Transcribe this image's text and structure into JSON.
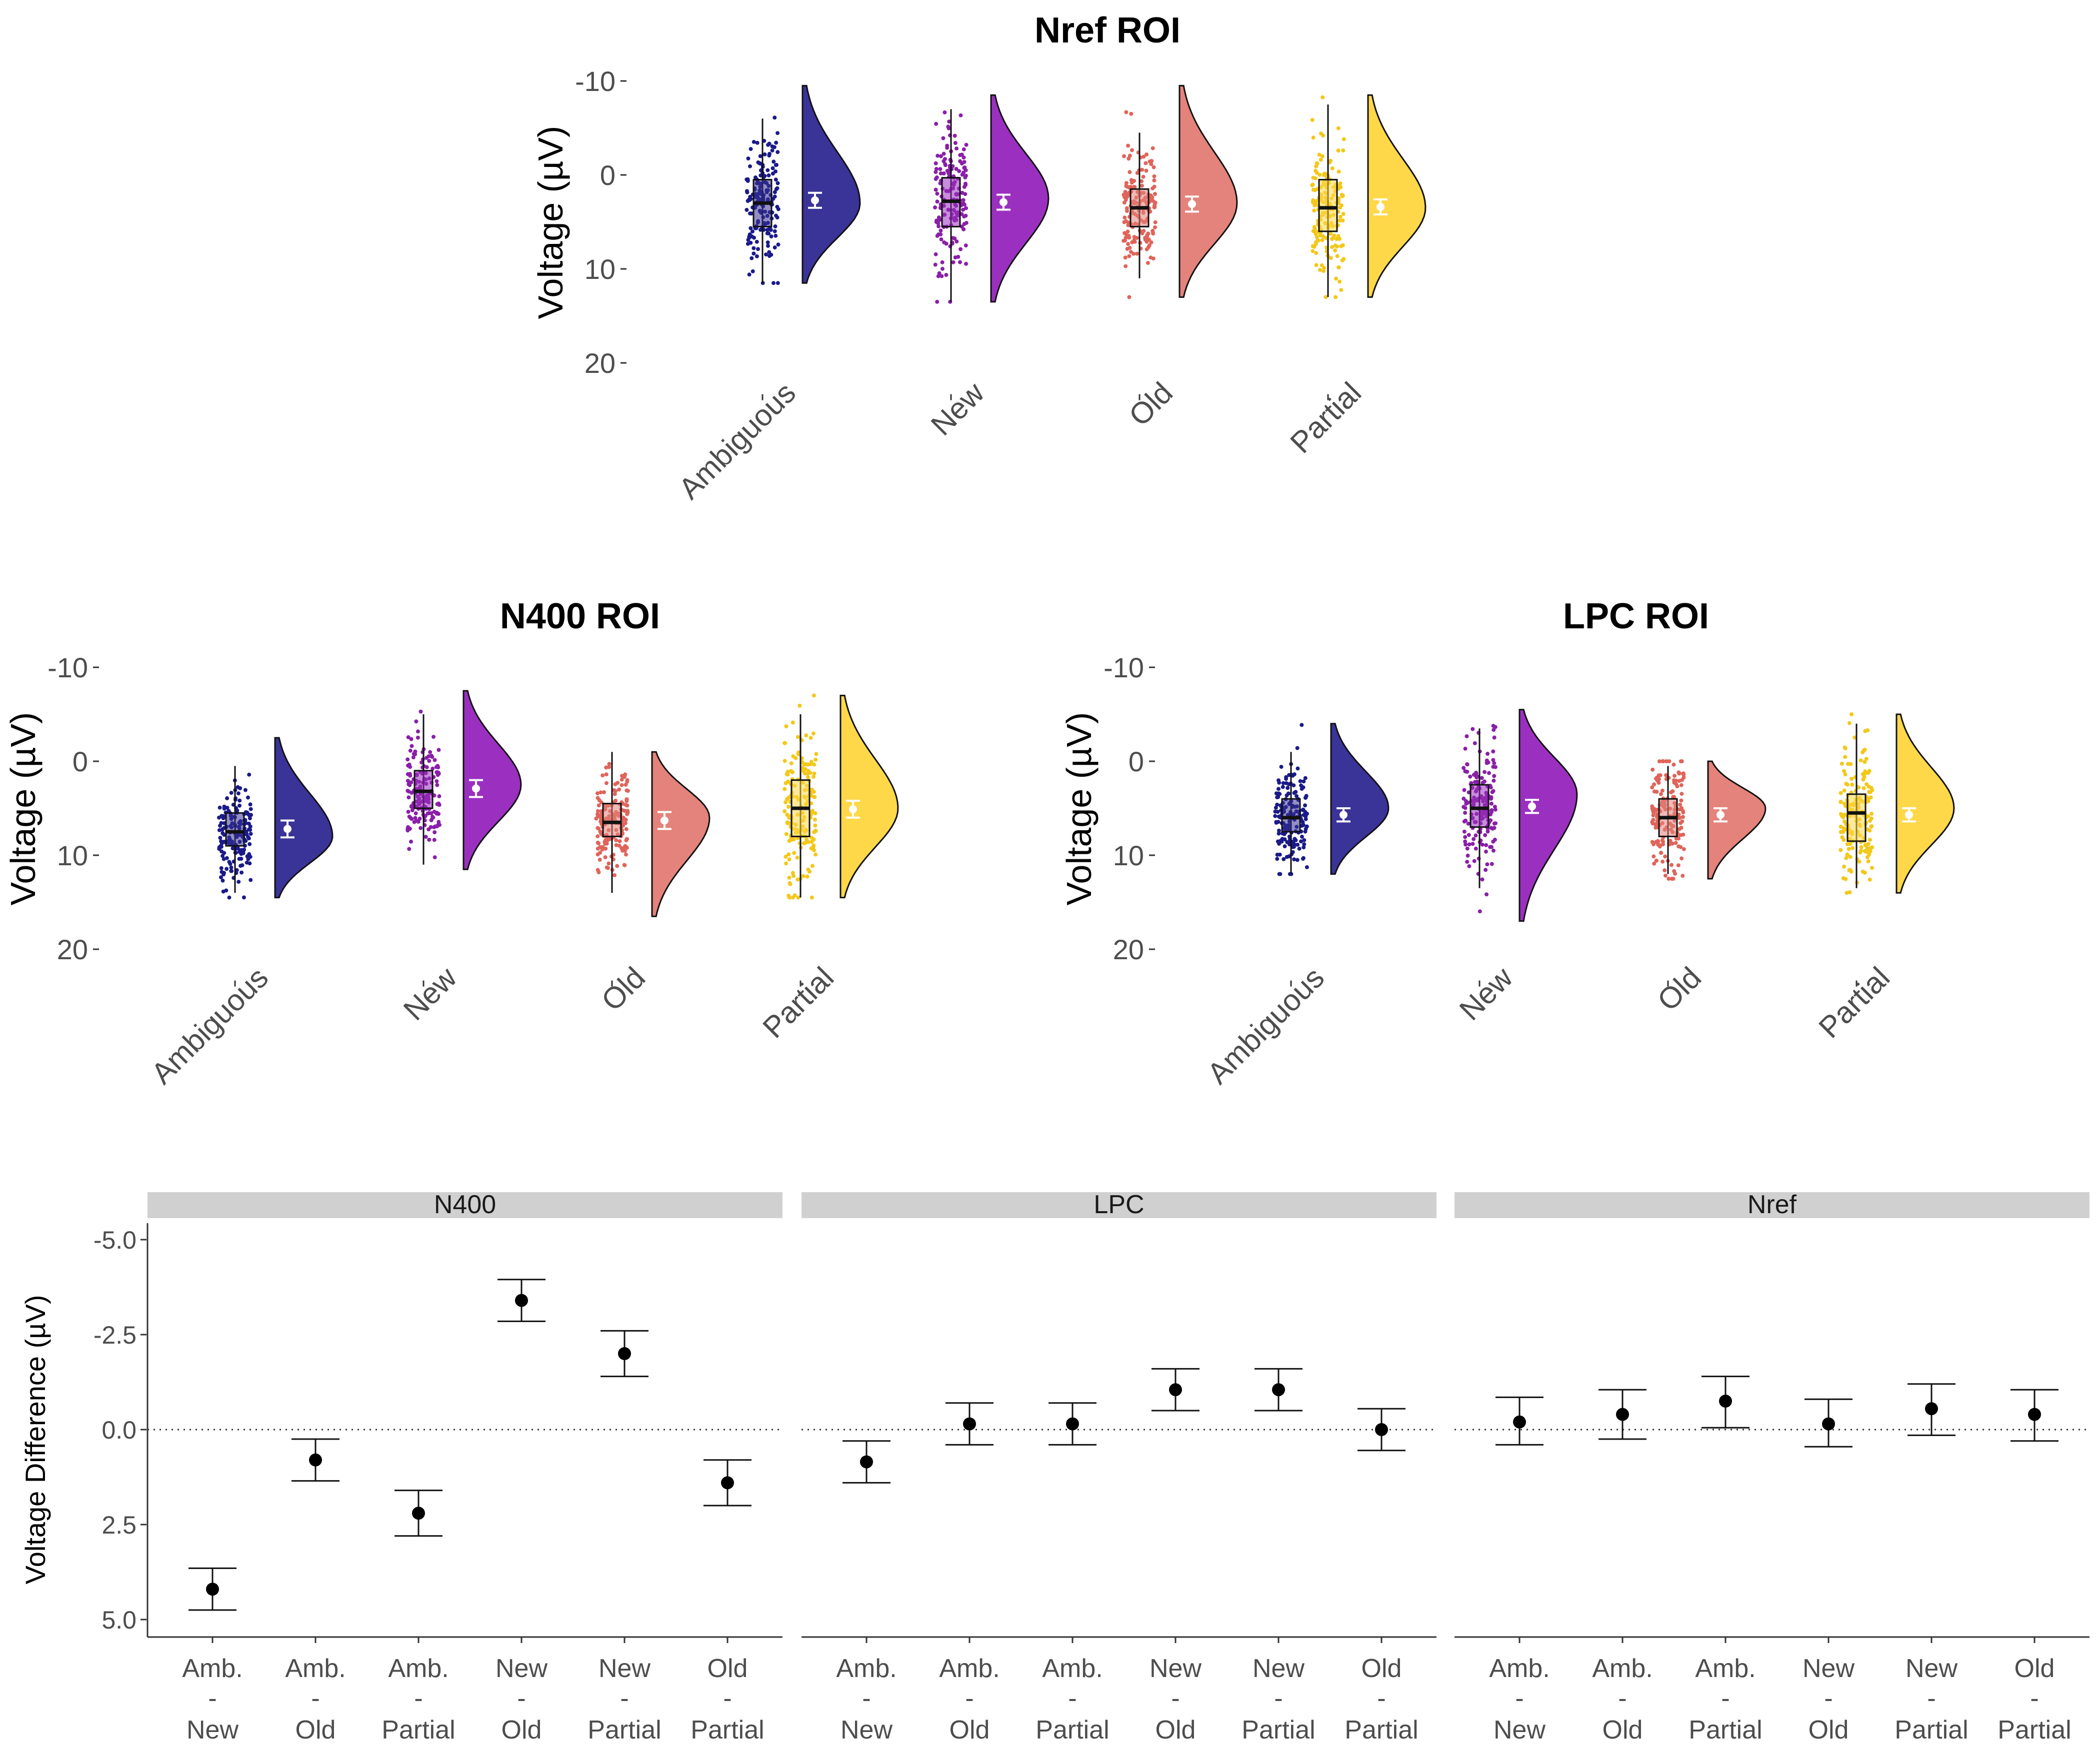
{
  "colors": {
    "Ambiguous": "#3a3398",
    "New": "#9b30c0",
    "Old": "#e4837b",
    "Partial": "#ffd84a",
    "Ambiguous_pt": "#1a1a8a",
    "New_pt": "#8a1fa8",
    "Old_pt": "#e0645a",
    "Partial_pt": "#f2c81a"
  },
  "chart_data": [
    {
      "type": "raincloud",
      "title": "Nref ROI",
      "ylabel": "Voltage (µV)",
      "ylim": [
        -11,
        22
      ],
      "y_reversed": true,
      "yticks": [
        -10,
        0,
        10,
        20
      ],
      "ytick_labels": [
        "-10",
        "0",
        "10",
        "20"
      ],
      "categories": [
        "Ambiguous",
        "New",
        "Old",
        "Partial"
      ],
      "box": [
        {
          "q1": 0.5,
          "median": 3.0,
          "q3": 5.5,
          "lo": -6.0,
          "hi": 11.5,
          "mean": 2.7,
          "ci": [
            1.9,
            3.5
          ],
          "density_min": -9.5,
          "density_max": 11.5,
          "density_mode": 3.0
        },
        {
          "q1": 0.3,
          "median": 2.8,
          "q3": 5.5,
          "lo": -7.0,
          "hi": 13.5,
          "mean": 2.9,
          "ci": [
            2.1,
            3.7
          ],
          "density_min": -8.5,
          "density_max": 13.5,
          "density_mode": 2.5
        },
        {
          "q1": 1.5,
          "median": 3.5,
          "q3": 5.5,
          "lo": -4.5,
          "hi": 11.0,
          "mean": 3.1,
          "ci": [
            2.3,
            3.9
          ],
          "density_min": -9.5,
          "density_max": 13.0,
          "density_mode": 3.0
        },
        {
          "q1": 0.5,
          "median": 3.5,
          "q3": 6.0,
          "lo": -7.5,
          "hi": 13.0,
          "mean": 3.4,
          "ci": [
            2.6,
            4.2
          ],
          "density_min": -8.5,
          "density_max": 13.0,
          "density_mode": 3.5
        }
      ]
    },
    {
      "type": "raincloud",
      "title": "N400 ROI",
      "ylabel": "Voltage (µV)",
      "ylim": [
        -11,
        22
      ],
      "y_reversed": true,
      "yticks": [
        -10,
        0,
        10,
        20
      ],
      "ytick_labels": [
        "-10",
        "0",
        "10",
        "20"
      ],
      "categories": [
        "Ambiguous",
        "New",
        "Old",
        "Partial"
      ],
      "box": [
        {
          "q1": 5.5,
          "median": 7.5,
          "q3": 9.0,
          "lo": 0.5,
          "hi": 14.0,
          "mean": 7.2,
          "ci": [
            6.3,
            8.1
          ],
          "density_min": -2.5,
          "density_max": 14.5,
          "density_mode": 8.0
        },
        {
          "q1": 1.0,
          "median": 3.2,
          "q3": 5.0,
          "lo": -5.0,
          "hi": 11.0,
          "mean": 2.9,
          "ci": [
            2.0,
            3.8
          ],
          "density_min": -7.5,
          "density_max": 11.5,
          "density_mode": 2.5
        },
        {
          "q1": 4.5,
          "median": 6.5,
          "q3": 8.0,
          "lo": -1.0,
          "hi": 14.0,
          "mean": 6.3,
          "ci": [
            5.4,
            7.2
          ],
          "density_min": -1.0,
          "density_max": 16.5,
          "density_mode": 6.0
        },
        {
          "q1": 2.0,
          "median": 5.0,
          "q3": 8.0,
          "lo": -5.0,
          "hi": 14.5,
          "mean": 5.1,
          "ci": [
            4.2,
            6.0
          ],
          "density_min": -7.0,
          "density_max": 14.5,
          "density_mode": 5.0
        }
      ]
    },
    {
      "type": "raincloud",
      "title": "LPC ROI",
      "ylabel": "Voltage (µV)",
      "ylim": [
        -11,
        22
      ],
      "y_reversed": true,
      "yticks": [
        -10,
        0,
        10,
        20
      ],
      "ytick_labels": [
        "-10",
        "0",
        "10",
        "20"
      ],
      "categories": [
        "Ambiguous",
        "New",
        "Old",
        "Partial"
      ],
      "box": [
        {
          "q1": 4.0,
          "median": 6.0,
          "q3": 7.5,
          "lo": -1.0,
          "hi": 12.0,
          "mean": 5.7,
          "ci": [
            5.0,
            6.4
          ],
          "density_min": -4.0,
          "density_max": 12.0,
          "density_mode": 5.0
        },
        {
          "q1": 2.5,
          "median": 5.0,
          "q3": 7.0,
          "lo": -3.5,
          "hi": 13.5,
          "mean": 4.8,
          "ci": [
            4.1,
            5.5
          ],
          "density_min": -5.5,
          "density_max": 17.0,
          "density_mode": 3.5
        },
        {
          "q1": 4.0,
          "median": 6.0,
          "q3": 8.0,
          "lo": 0.5,
          "hi": 12.0,
          "mean": 5.7,
          "ci": [
            5.0,
            6.4
          ],
          "density_min": 0.0,
          "density_max": 12.5,
          "density_mode": 5.0
        },
        {
          "q1": 3.5,
          "median": 5.5,
          "q3": 8.5,
          "lo": -4.0,
          "hi": 13.5,
          "mean": 5.7,
          "ci": [
            5.0,
            6.4
          ],
          "density_min": -5.0,
          "density_max": 14.0,
          "density_mode": 5.0
        }
      ]
    },
    {
      "type": "errorbar_facets",
      "ylabel": "Voltage Difference (µV)",
      "ylim": [
        -5.5,
        5.5
      ],
      "y_reversed": true,
      "yticks": [
        -5.0,
        -2.5,
        0.0,
        2.5,
        5.0
      ],
      "ytick_labels": [
        "-5.0",
        "-2.5",
        "0.0",
        "2.5",
        "5.0"
      ],
      "comparisons": [
        {
          "top": "Amb.",
          "mid": "-",
          "bottom": "New"
        },
        {
          "top": "Amb.",
          "mid": "-",
          "bottom": "Old"
        },
        {
          "top": "Amb.",
          "mid": "-",
          "bottom": "Partial"
        },
        {
          "top": "New",
          "mid": "-",
          "bottom": "Old"
        },
        {
          "top": "New",
          "mid": "-",
          "bottom": "Partial"
        },
        {
          "top": "Old",
          "mid": "-",
          "bottom": "Partial"
        }
      ],
      "facets": [
        {
          "name": "N400",
          "estimates": [
            4.2,
            0.8,
            2.2,
            -3.4,
            -2.0,
            1.4
          ],
          "lower": [
            3.65,
            0.25,
            1.6,
            -3.95,
            -2.6,
            0.8
          ],
          "upper": [
            4.75,
            1.35,
            2.8,
            -2.85,
            -1.4,
            2.0
          ]
        },
        {
          "name": "LPC",
          "estimates": [
            0.85,
            -0.15,
            -0.15,
            -1.05,
            -1.05,
            0.0
          ],
          "lower": [
            0.3,
            -0.7,
            -0.7,
            -1.6,
            -1.6,
            -0.55
          ],
          "upper": [
            1.4,
            0.4,
            0.4,
            -0.5,
            -0.5,
            0.55
          ]
        },
        {
          "name": "Nref",
          "estimates": [
            -0.2,
            -0.4,
            -0.75,
            -0.15,
            -0.55,
            -0.4
          ],
          "lower": [
            -0.85,
            -1.05,
            -1.4,
            -0.8,
            -1.2,
            -1.05
          ],
          "upper": [
            0.4,
            0.25,
            -0.05,
            0.45,
            0.15,
            0.3
          ]
        }
      ]
    }
  ]
}
